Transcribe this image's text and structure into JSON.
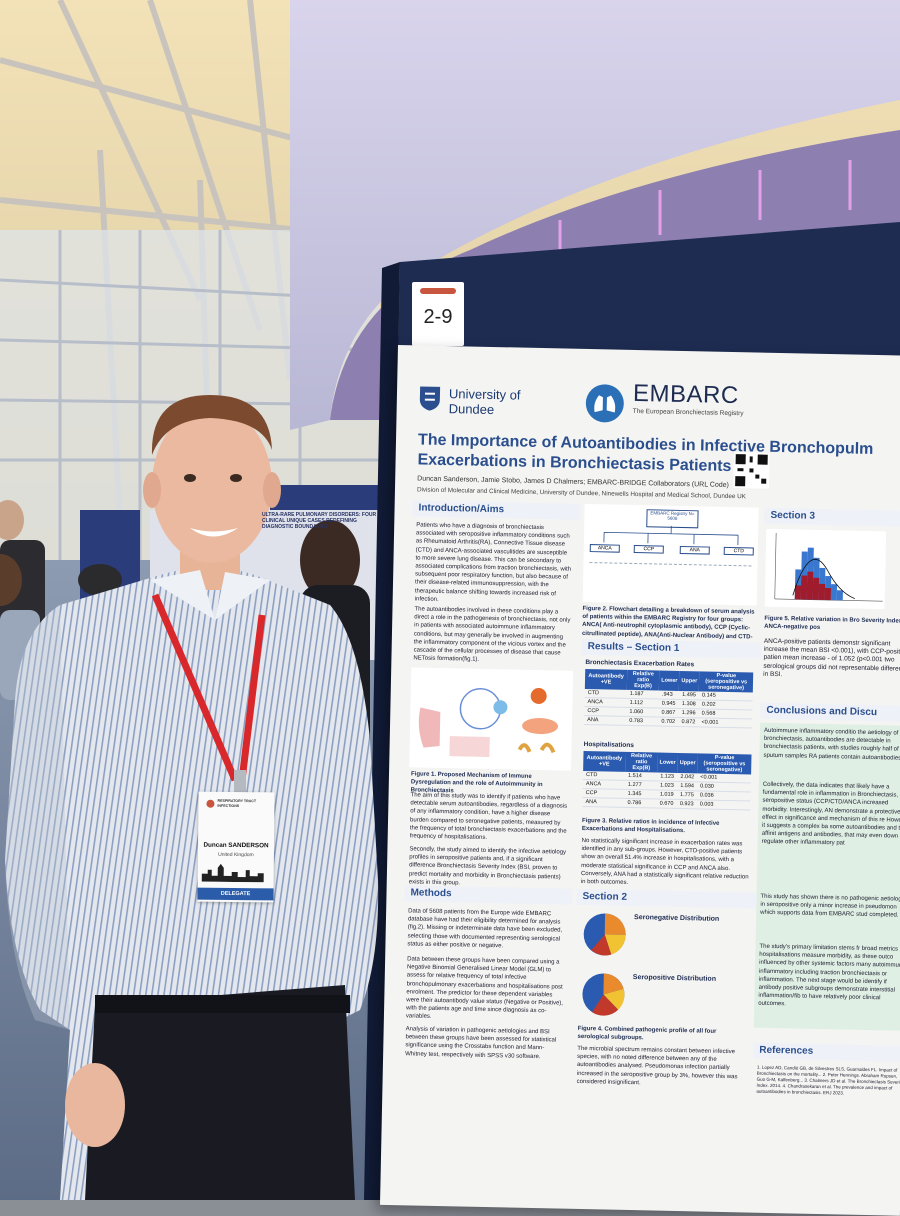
{
  "scene": {
    "colors": {
      "sky": "#e9d9b4",
      "wall": "#cfd3ea",
      "board": "#1e2c52",
      "poster_blue": "#2b4f8e",
      "lanyard": "#d8282b",
      "shirt": "#d7dce4"
    },
    "board_number": "2-9"
  },
  "background_poster": {
    "title": "ULTRA-RARE PULMONARY DISORDERS: FOUR CLINICAL UNIQUE CASES REDEFINING DIAGNOSTIC BOUNDARIES"
  },
  "badge": {
    "event": "RESPIRATORY TRACT INFECTIONS",
    "name": "Duncan SANDERSON",
    "country": "United Kingdom",
    "role": "DELEGATE"
  },
  "poster": {
    "logos": {
      "university": "University of Dundee",
      "embarc": "EMBARC",
      "embarc_sub": "The European Bronchiectasis Registry"
    },
    "title_line1": "The Importance of Autoantibodies in Infective Bronchopulm",
    "title_line2": "Exacerbations in Bronchiectasis Patients",
    "authors": "Duncan Sanderson, Jamie Stobo, James D Chalmers; EMBARC-BRIDGE Collaborators (URL Code)",
    "affiliation": "Division of Molecular and Clinical Medicine, University of Dundee, Ninewells Hospital and Medical School, Dundee UK",
    "intro_heading": "Introduction/Aims",
    "intro_text": "Patients who have a diagnosis of bronchiectasis associated with seropositive inflammatory conditions such as Rheumatoid Arthritis(RA), Connective Tissue disease (CTD) and ANCA-associated vasculitides are susceptible to more severe lung disease. This can be secondary to associated complications from traction bronchiectasis, with subsequent poor respiratory function, but also because of their disease-related immunosuppression, with the therapeutic balance shifting towards increased risk of infection.",
    "intro_text2": "The autoantibodies involved in these conditions play a direct a role in the pathogenesis of bronchiectasis, not only in patients with associated autoimmune inflammatory conditions, but may generally be involved in augmenting the inflammatory component of the vicious vortex and the cascade of the cellular processes of disease that cause NETosis formation(fig.1).",
    "fig1_caption": "Figure 1. Proposed Mechanism of Immune Dysregulation and the role of Autoimmunity in Bronchiectasis",
    "aim_text": "The aim of this study was to identify if patients who have detectable serum autoantibodies, regardless of a diagnosis of any inflammatory condition, have a higher disease burden compared to seronegative patients, measured by the frequency of total bronchiectasis exacerbations and the frequency of hospitalisations.",
    "aim_text2": "Secondly, the study aimed to identify the infective aetiology profiles in seropositive patients and, if a significant difference Bronchiectasis Severity Index (BSI, proven to predict mortality and morbidity in Bronchiectasis patients) exists in this group.",
    "methods_heading": "Methods",
    "methods_text": "Data of 5608 patients from the Europe wide EMBARC database have had their eligibility determined for analysis (fig.2). Missing or indeterminate data have been excluded, selecting those with documented representing serological status as either positive or negative.",
    "methods_text2": "Data between these groups have been compared using a Negative Binomial Generalised Linear Model (GLM) to assess for relative frequency of total infective bronchopulmonary exacerbations and hospitalisations post enrolment. The predictor for these dependent variables were their autoantibody value status (Negative or Positive), with the patients age and time since diagnosis as co-variables.",
    "methods_text3": "Analysis of variation in pathogenic aetiologies and BSI between these groups have been assessed for statistical significance using the Crosstabs function and Mann-Whitney test, respectively with SPSS v30 software.",
    "flow_top": "EMBARC Registry N= 5608",
    "flow_boxes": [
      "ANCA",
      "CCP",
      "ANA",
      "CTD"
    ],
    "fig2_caption": "Figure 2. Flowchart detailing a breakdown of serum analysis of patients within the EMBARC Registry for four groups: ANCA( Anti-neutrophil cytoplasmic antibody), CCP (Cyclic-citrullinated peptide), ANA(Anti-Nuclear Antibody) and CTD-screen.",
    "results_heading": "Results – Section 1",
    "exac_title": "Bronchiectasis Exacerbation Rates",
    "exac_headers": [
      "Autoantibody +VE",
      "Relative ratio Exp(B)",
      "Lower",
      "Upper",
      "P-value (seropositive vs seronegative)"
    ],
    "exac_rows": [
      [
        "CTD",
        "1.187",
        ".943",
        "1.495",
        "0.145"
      ],
      [
        "ANCA",
        "1.112",
        "0.945",
        "1.308",
        "0.202"
      ],
      [
        "CCP",
        "1.060",
        "0.867",
        "1.296",
        "0.568"
      ],
      [
        "ANA",
        "0.783",
        "0.702",
        "0.872",
        "<0.001"
      ]
    ],
    "hosp_title": "Hospitalisations",
    "hosp_headers": [
      "Autoantibody +VE",
      "Relative ratio Exp(B)",
      "Lower",
      "Upper",
      "P-value (seropositive vs seronegative)"
    ],
    "hosp_rows": [
      [
        "CTD",
        "1.514",
        "1.123",
        "2.042",
        "<0.001"
      ],
      [
        "ANCA",
        "1.277",
        "1.023",
        "1.594",
        "0.030"
      ],
      [
        "CCP",
        "1.345",
        "1.019",
        "1.775",
        "0.036"
      ],
      [
        "ANA",
        "0.786",
        "0.670",
        "0.923",
        "0.003"
      ]
    ],
    "fig3_caption": "Figure 3. Relative ratios in incidence of Infective Exacerbations and Hospitalisations.",
    "results_text": "No statistically significant increase in exacerbation rates was identified in any sub-groups. However, CTD-positive patients show an overall 51.4% increase in hospitalisations, with a moderate statistical significance in CCP and ANCA also. Conversely, ANA had a statistically significant relative reduction in both outcomes.",
    "section2_heading": "Section 2",
    "seroneg_title": "Seronegative Distribution",
    "seropos_title": "Seropositive Distribution",
    "fig4_caption": "Figure 4. Combined pathogenic profile of all four serological subgroups.",
    "section2_text": "The microbial spectrum remains constant between infective species, with no noted difference between any of the autoantibodies analysed. Pseudomonas infection partially increased in the seropositive group by 3%, however this was considered insignificant.",
    "section3_heading": "Section 3",
    "fig5_caption": "Figure 5. Relative variation in Bro Severity Index- ANCA-negative pos",
    "section3_text": "ANCA-positive patients demonstr significant increase the mean BSI <0.001), with CCP-positive patien mean increase - of 1.052 (p<0.001 two serological groups did not representable difference in BSI.",
    "conclusions_heading": "Conclusions and Discu",
    "conclusions_text": "Autoimmune inflammatory conditio the aetiology of bronchiectasis, autoantibodies are detectable in bronchiectasis patients, with studies roughly half of the sputum samples RA patients contain autoantibodies.",
    "conclusions_text2": "Collectively, the data indicates that likely have a fundamental role in inflammation in Bronchiectasis, seropositive status (CCP/CTD/ANCA increased morbidity. Interestingly, AN demonstrate a protective effect in significance and mechanism of this re However, it suggests a complex ba some autoantibodies and their affinit antigens and antibodies, that may even down regulate other inflammatory pat",
    "conclusions_text3": "This study has shown there is no pathogenic aetiologies in seropositive only a minor increase in pseudomon which supports data from EMBARC stud completed.",
    "conclusions_text4": "The study's primary limitation stems fr broad metrics like hospitalisations measure morbidity, as these outco influenced by other systemic factors many autoimmune inflammatory including traction bronchiectasis or inflammation. The next stage would be identify if antibody positive subgroups demonstrate interstitial inflammation/fib to have relatively poor clinical outcomes.",
    "references_heading": "References",
    "references_text": "1. Lopez AD, Candiò GB, de Silvestres SLS, Guarnaldes FL. Impact of Bronchiectasis on the mortality... 2. Peter Hennings. Abraham Rupsen, Guo G-M, Kalfenberg... 3. Chalmers JD et al. The Bronchiectasis Severity Index. 2014. 4. Chandrasekaran et al. The prevalence and impact of autoantibodies in bronchiectasis. ERJ 2023."
  }
}
